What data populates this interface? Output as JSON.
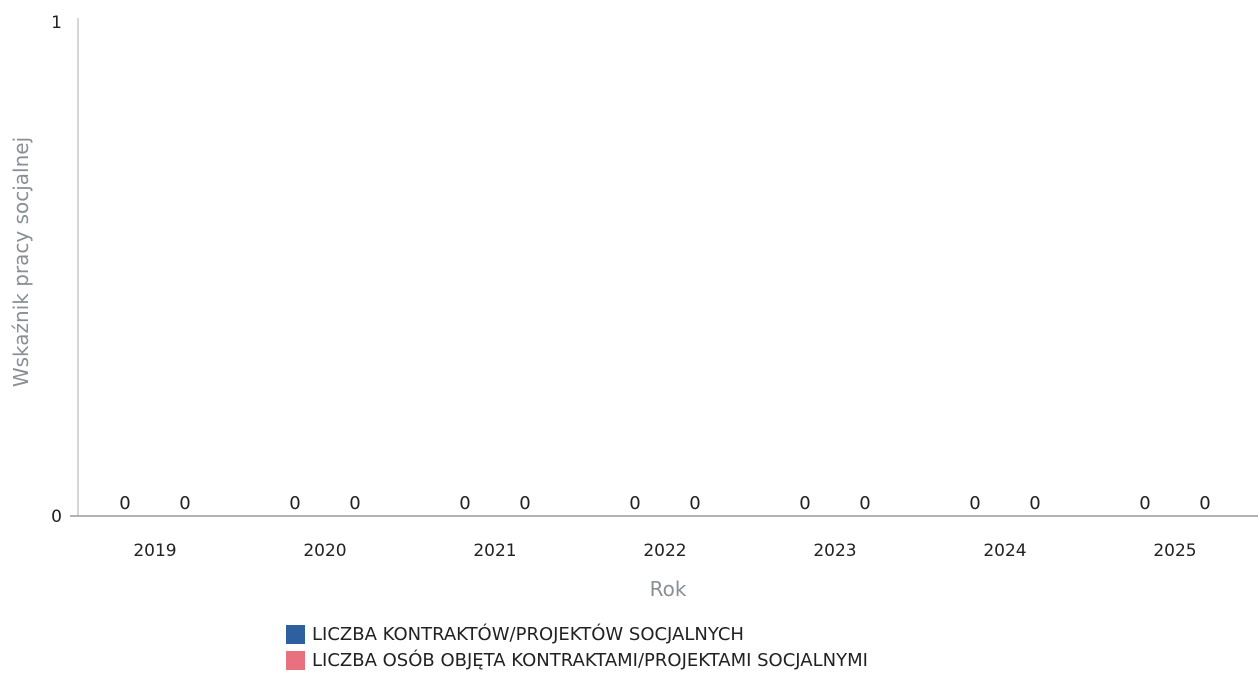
{
  "chart_data": {
    "type": "bar",
    "title": "",
    "xlabel": "Rok",
    "ylabel": "Wskaźnik pracy socjalnej",
    "categories": [
      "2019",
      "2020",
      "2021",
      "2022",
      "2023",
      "2024",
      "2025"
    ],
    "series": [
      {
        "name": "LICZBA KONTRAKTÓW/PROJEKTÓW SOCJALNYCH",
        "color": "#2e5f9e",
        "values": [
          0,
          0,
          0,
          0,
          0,
          0,
          0
        ]
      },
      {
        "name": "LICZBA OSÓB OBJĘTA KONTRAKTAMI/PROJEKTAMI SOCJALNYMI",
        "color": "#e8707f",
        "values": [
          0,
          0,
          0,
          0,
          0,
          0,
          0
        ]
      }
    ],
    "ylim": [
      0,
      1
    ],
    "yticks": [
      "0",
      "1"
    ],
    "grid": false,
    "data_labels": true,
    "legend_position": "bottom"
  }
}
